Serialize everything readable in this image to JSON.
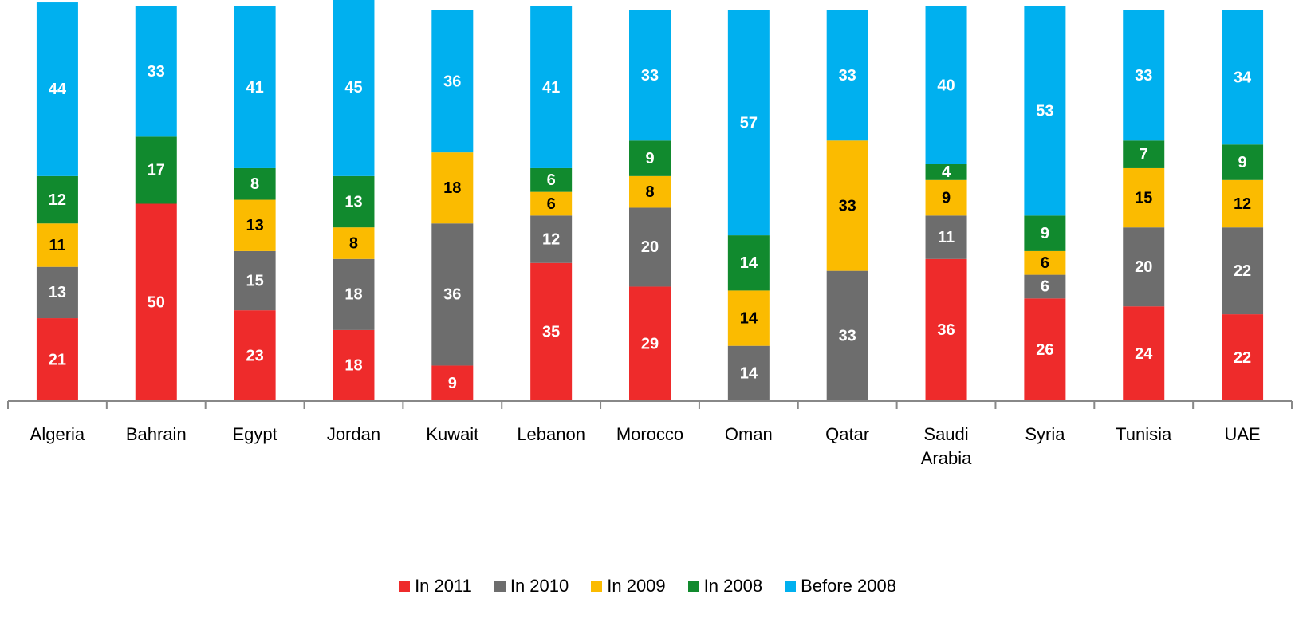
{
  "chart_data": {
    "type": "stacked_bar",
    "categories": [
      "Algeria",
      "Bahrain",
      "Egypt",
      "Jordan",
      "Kuwait",
      "Lebanon",
      "Morocco",
      "Oman",
      "Qatar",
      "Saudi Arabia",
      "Syria",
      "Tunisia",
      "UAE"
    ],
    "series": [
      {
        "name": "In 2011",
        "color": "#ee2b2b",
        "label_color": "#ffffff",
        "values": [
          21,
          50,
          23,
          18,
          9,
          35,
          29,
          null,
          null,
          36,
          26,
          24,
          22
        ]
      },
      {
        "name": "In 2010",
        "color": "#6d6d6d",
        "label_color": "#ffffff",
        "values": [
          13,
          null,
          15,
          18,
          36,
          12,
          20,
          14,
          33,
          11,
          6,
          20,
          22
        ]
      },
      {
        "name": "In 2009",
        "color": "#fbbb00",
        "label_color": "#000000",
        "values": [
          11,
          null,
          13,
          8,
          18,
          6,
          8,
          14,
          33,
          9,
          6,
          15,
          12
        ]
      },
      {
        "name": "In 2008",
        "color": "#118a2e",
        "label_color": "#ffffff",
        "values": [
          12,
          17,
          8,
          13,
          null,
          6,
          9,
          14,
          null,
          4,
          9,
          7,
          9
        ]
      },
      {
        "name": "Before 2008",
        "color": "#00b0ef",
        "label_color": "#ffffff",
        "values": [
          44,
          33,
          41,
          45,
          36,
          41,
          33,
          57,
          33,
          40,
          53,
          33,
          34
        ]
      }
    ],
    "ylim": [
      0,
      100
    ]
  }
}
